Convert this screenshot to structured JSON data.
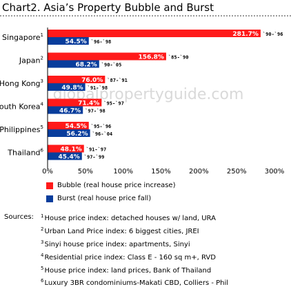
{
  "title": "Chart2. Asia’s Property Bubble and Burst",
  "watermark": "globalpropertyguide.com",
  "colors": {
    "bubble": "#ff1a1a",
    "burst": "#083d9c"
  },
  "chart_data": {
    "type": "bar",
    "orientation": "horizontal",
    "categories": [
      {
        "name": "Singapore",
        "note": "1"
      },
      {
        "name": "Japan",
        "note": "2"
      },
      {
        "name": "Hong Kong",
        "note": "3"
      },
      {
        "name": "South Korea",
        "note": "4"
      },
      {
        "name": "Philippines",
        "note": "5"
      },
      {
        "name": "Thailand",
        "note": "6"
      }
    ],
    "series": [
      {
        "name": "Bubble (real house price increase)",
        "values": [
          281.7,
          156.8,
          76.0,
          71.4,
          54.5,
          48.1
        ],
        "labels": [
          "281.7%",
          "156.8%",
          "76.0%",
          "71.4%",
          "54.5%",
          "48.1%"
        ],
        "periods": [
          "`90-`96",
          "`85-`90",
          "`87-`91",
          "`95-`97",
          "`95-`96",
          "`91-`97"
        ]
      },
      {
        "name": "Burst (real house price fall)",
        "values": [
          54.5,
          68.2,
          49.8,
          46.7,
          56.2,
          45.4
        ],
        "labels": [
          "54.5%",
          "68.2%",
          "49.8%",
          "46.7%",
          "56.2%",
          "45.4%"
        ],
        "periods": [
          "`96-`98",
          "`90-`05",
          "`91-`98",
          "`97-`98",
          "`96-`04",
          "`97-`99"
        ]
      }
    ],
    "xlim": [
      0,
      300
    ],
    "xticks": [
      "0%",
      "50%",
      "100%",
      "150%",
      "200%",
      "250%",
      "300%"
    ],
    "grid": false,
    "legend_position": "bottom-left"
  },
  "sources": {
    "label": "Sources:",
    "items": [
      {
        "note": "1",
        "text": "House price index: detached houses w/ land, URA"
      },
      {
        "note": "2",
        "text": "Urban Land Price index: 6 biggest cities, JREI"
      },
      {
        "note": "3",
        "text": "Sinyi house price index: apartments, Sinyi"
      },
      {
        "note": "4",
        "text": "Residential price index: Class E - 160 sq m+, RVD"
      },
      {
        "note": "5",
        "text": "House price index: land prices, Bank of Thailand"
      },
      {
        "note": "6",
        "text": "Luxury 3BR condominiums-Makati CBD, Colliers - Phil"
      }
    ]
  }
}
